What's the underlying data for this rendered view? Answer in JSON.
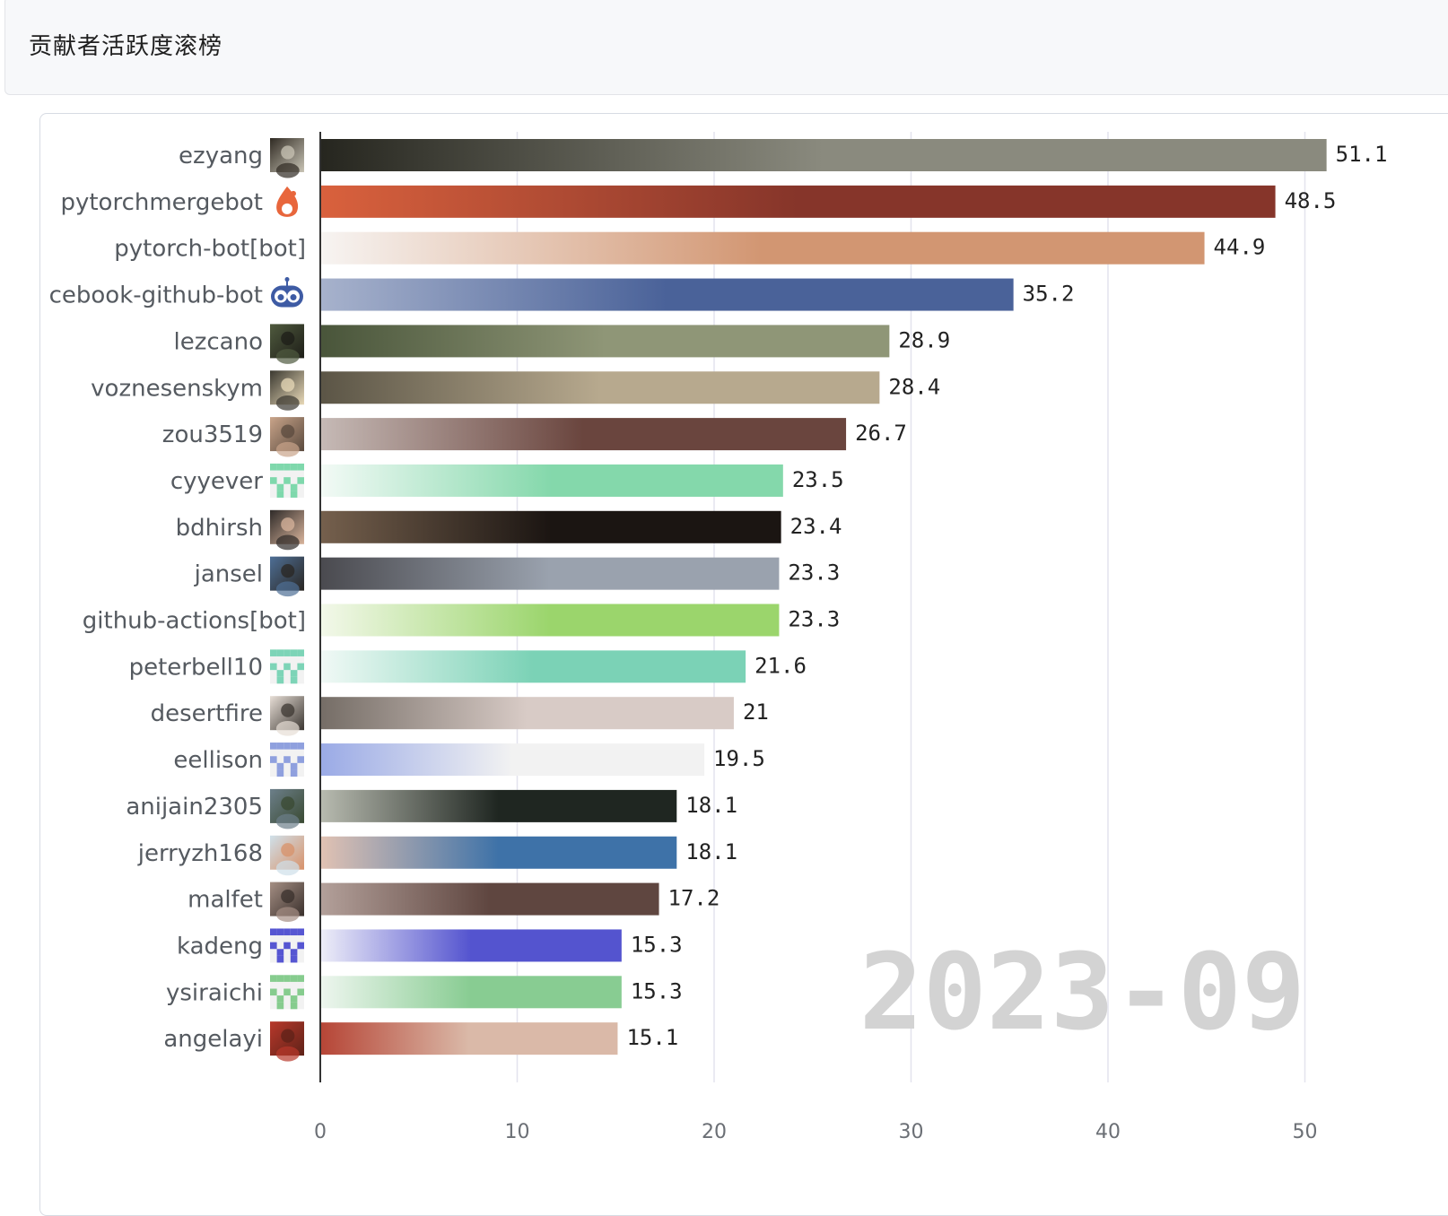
{
  "header": {
    "title": "贡献者活跃度滚榜"
  },
  "chart_data": {
    "type": "bar",
    "orientation": "horizontal",
    "title": "",
    "period": "2023-09",
    "xlim": [
      0,
      52
    ],
    "xticks": [
      0,
      10,
      20,
      30,
      40,
      50
    ],
    "grid": true,
    "categories": [
      "ezyang",
      "pytorchmergebot",
      "pytorch-bot[bot]",
      "cebook-github-bot",
      "lezcano",
      "voznesenskym",
      "zou3519",
      "cyyever",
      "bdhirsh",
      "jansel",
      "github-actions[bot]",
      "peterbell10",
      "desertfire",
      "eellison",
      "anijain2305",
      "jerryzh168",
      "malfet",
      "kadeng",
      "ysiraichi",
      "angelayi"
    ],
    "values": [
      51.1,
      48.5,
      44.9,
      35.2,
      28.9,
      28.4,
      26.7,
      23.5,
      23.4,
      23.3,
      23.3,
      21.6,
      21,
      19.5,
      18.1,
      18.1,
      17.2,
      15.3,
      15.3,
      15.1
    ],
    "value_labels": [
      "51.1",
      "48.5",
      "44.9",
      "35.2",
      "28.9",
      "28.4",
      "26.7",
      "23.5",
      "23.4",
      "23.3",
      "23.3",
      "21.6",
      "21",
      "19.5",
      "18.1",
      "18.1",
      "17.2",
      "15.3",
      "15.3",
      "15.1"
    ],
    "bar_colors": [
      [
        "#26261f",
        "#8a8a7e"
      ],
      [
        "#d9613d",
        "#86352a"
      ],
      [
        "#f7f4f2",
        "#d29672"
      ],
      [
        "#a7b2cc",
        "#4a6299"
      ],
      [
        "#49553a",
        "#8f9677"
      ],
      [
        "#5b5546",
        "#b7a98e"
      ],
      [
        "#c6bab6",
        "#6a453e"
      ],
      [
        "#f3faf6",
        "#84d8ab"
      ],
      [
        "#75604d",
        "#1b1512"
      ],
      [
        "#4a4a4f",
        "#9aa2ae"
      ],
      [
        "#f3f8ea",
        "#9bd56c"
      ],
      [
        "#f1f9f6",
        "#7bd2b6"
      ],
      [
        "#756d66",
        "#d8cbc6"
      ],
      [
        "#9aaae6",
        "#f2f2f2"
      ],
      [
        "#b8bbb0",
        "#1f2621"
      ],
      [
        "#e1c2b3",
        "#3e72a8"
      ],
      [
        "#b3a09a",
        "#5f4640"
      ],
      [
        "#eeeef8",
        "#5454cf"
      ],
      [
        "#eef6ef",
        "#88cc92"
      ],
      [
        "#b64536",
        "#dab9a8"
      ]
    ],
    "avatars": [
      {
        "kind": "photo",
        "colors": [
          "#2f2a22",
          "#c9c4b6"
        ]
      },
      {
        "kind": "flame",
        "colors": [
          "#e8663c",
          "#ffffff"
        ]
      },
      {
        "kind": "none",
        "colors": []
      },
      {
        "kind": "robot",
        "colors": [
          "#3e5ba4",
          "#ffffff"
        ]
      },
      {
        "kind": "photo",
        "colors": [
          "#4f5a3e",
          "#1e1e18"
        ]
      },
      {
        "kind": "photo",
        "colors": [
          "#3a3830",
          "#e8d9b8"
        ]
      },
      {
        "kind": "photo",
        "colors": [
          "#c9a48a",
          "#5a4a3e"
        ]
      },
      {
        "kind": "identicon",
        "colors": [
          "#7fd8ac",
          "#f2f2f2"
        ]
      },
      {
        "kind": "photo",
        "colors": [
          "#2e2a28",
          "#d8b49c"
        ]
      },
      {
        "kind": "photo",
        "colors": [
          "#4e6f96",
          "#2a2622"
        ]
      },
      {
        "kind": "none",
        "colors": []
      },
      {
        "kind": "identicon",
        "colors": [
          "#7dd4b7",
          "#f2f2f2"
        ]
      },
      {
        "kind": "photo",
        "colors": [
          "#e7ded6",
          "#3c3732"
        ]
      },
      {
        "kind": "identicon",
        "colors": [
          "#8fa0de",
          "#f2f2f2"
        ]
      },
      {
        "kind": "photo",
        "colors": [
          "#6c7f8a",
          "#3a4a32"
        ]
      },
      {
        "kind": "photo",
        "colors": [
          "#cfe0ea",
          "#d8926a"
        ]
      },
      {
        "kind": "photo",
        "colors": [
          "#a58f84",
          "#3a302c"
        ]
      },
      {
        "kind": "identicon",
        "colors": [
          "#5656d2",
          "#f2f2f2"
        ]
      },
      {
        "kind": "identicon",
        "colors": [
          "#86cc8e",
          "#f2f2f2"
        ]
      },
      {
        "kind": "photo",
        "colors": [
          "#b8382b",
          "#5e2218"
        ]
      }
    ]
  }
}
